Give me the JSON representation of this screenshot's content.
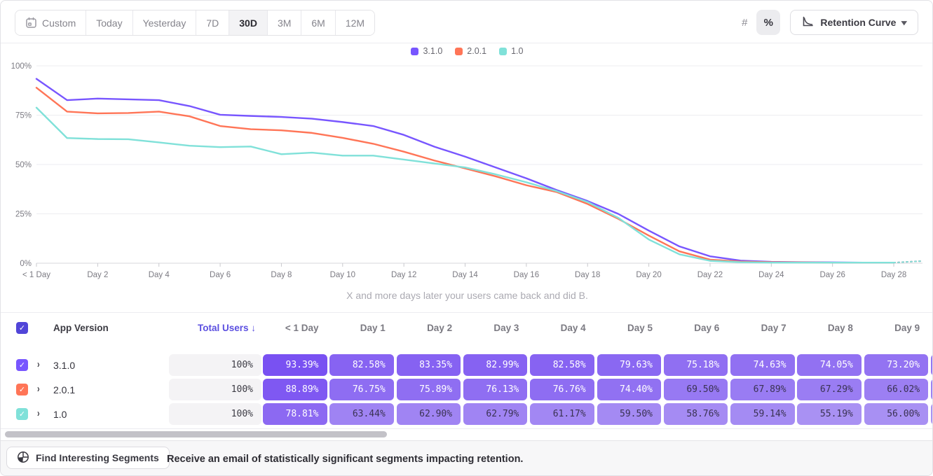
{
  "toolbar": {
    "ranges": [
      "Custom",
      "Today",
      "Yesterday",
      "7D",
      "30D",
      "3M",
      "6M",
      "12M"
    ],
    "active_range": "30D",
    "value_toggle": {
      "options": [
        "#",
        "%"
      ],
      "selected": "%"
    },
    "chart_type_label": "Retention Curve"
  },
  "legend": [
    {
      "label": "3.1.0",
      "color": "#7856FF"
    },
    {
      "label": "2.0.1",
      "color": "#FF7557"
    },
    {
      "label": "1.0",
      "color": "#80E1D9"
    }
  ],
  "chart_data": {
    "type": "line",
    "title": "",
    "xlabel": "X and more days later your users came back and did B.",
    "ylabel": "",
    "ylim": [
      0,
      100
    ],
    "grid": true,
    "legend_position": "top-center",
    "y_ticks": [
      "0%",
      "25%",
      "50%",
      "75%",
      "100%"
    ],
    "x_tick_labels": [
      "< 1 Day",
      "Day 2",
      "Day 4",
      "Day 6",
      "Day 8",
      "Day 10",
      "Day 12",
      "Day 14",
      "Day 16",
      "Day 18",
      "Day 20",
      "Day 22",
      "Day 24",
      "Day 26",
      "Day 28"
    ],
    "x_tick_days": [
      0,
      2,
      4,
      6,
      8,
      10,
      12,
      14,
      16,
      18,
      20,
      22,
      24,
      26,
      28
    ],
    "x_days": [
      0,
      1,
      2,
      3,
      4,
      5,
      6,
      7,
      8,
      9,
      10,
      11,
      12,
      13,
      14,
      15,
      16,
      17,
      18,
      19,
      20,
      21,
      22,
      23,
      24,
      25,
      26,
      27,
      28
    ],
    "series": [
      {
        "name": "3.1.0",
        "color": "#7856FF",
        "values": [
          93.4,
          82.6,
          83.4,
          83.0,
          82.6,
          79.6,
          75.2,
          74.6,
          74.1,
          73.2,
          71.5,
          69.5,
          65.0,
          59.0,
          54.0,
          48.5,
          43.0,
          37.0,
          31.5,
          25.0,
          16.5,
          8.5,
          3.5,
          1.3,
          0.7,
          0.5,
          0.4,
          0.3,
          0.3
        ]
      },
      {
        "name": "2.0.1",
        "color": "#FF7557",
        "values": [
          88.9,
          76.8,
          75.9,
          76.1,
          76.8,
          74.4,
          69.5,
          67.9,
          67.3,
          66.0,
          63.5,
          60.5,
          56.5,
          52.0,
          48.0,
          44.0,
          39.5,
          36.0,
          30.0,
          22.5,
          14.0,
          6.0,
          1.8,
          0.8,
          0.5,
          0.4,
          0.3,
          0.3,
          0.3
        ]
      },
      {
        "name": "1.0",
        "color": "#80E1D9",
        "values": [
          78.8,
          63.4,
          62.9,
          62.8,
          61.2,
          59.5,
          58.8,
          59.1,
          55.2,
          56.0,
          54.5,
          54.5,
          52.5,
          50.5,
          48.5,
          45.0,
          41.0,
          36.5,
          31.0,
          23.0,
          12.0,
          4.5,
          1.2,
          0.5,
          0.3,
          0.3,
          0.3,
          0.3,
          0.3
        ]
      }
    ],
    "dashed_projection_tail": true
  },
  "table": {
    "version_header": "App Version",
    "total_header": "Total Users",
    "sort_arrow": "↓",
    "day_headers": [
      "< 1 Day",
      "Day 1",
      "Day 2",
      "Day 3",
      "Day 4",
      "Day 5",
      "Day 6",
      "Day 7",
      "Day 8",
      "Day 9"
    ],
    "rows": [
      {
        "version": "3.1.0",
        "color": "#7856FF",
        "total_users": "100%",
        "cells": [
          "93.39%",
          "82.58%",
          "83.35%",
          "82.99%",
          "82.58%",
          "79.63%",
          "75.18%",
          "74.63%",
          "74.05%",
          "73.20%"
        ]
      },
      {
        "version": "2.0.1",
        "color": "#FF7557",
        "total_users": "100%",
        "cells": [
          "88.89%",
          "76.75%",
          "75.89%",
          "76.13%",
          "76.76%",
          "74.40%",
          "69.50%",
          "67.89%",
          "67.29%",
          "66.02%"
        ]
      },
      {
        "version": "1.0",
        "color": "#80E1D9",
        "total_users": "100%",
        "cells": [
          "78.81%",
          "63.44%",
          "62.90%",
          "62.79%",
          "61.17%",
          "59.50%",
          "58.76%",
          "59.14%",
          "55.19%",
          "56.00%"
        ]
      }
    ]
  },
  "footer": {
    "button_label": "Find Interesting Segments",
    "message": "Receive an email of statistically significant segments impacting retention."
  },
  "colors": {
    "accent_purple": "#7856FF",
    "header_checkbox": "#5145d8",
    "cell_dark_text": "#3a3253",
    "cell_light_text": "#ffffff"
  }
}
